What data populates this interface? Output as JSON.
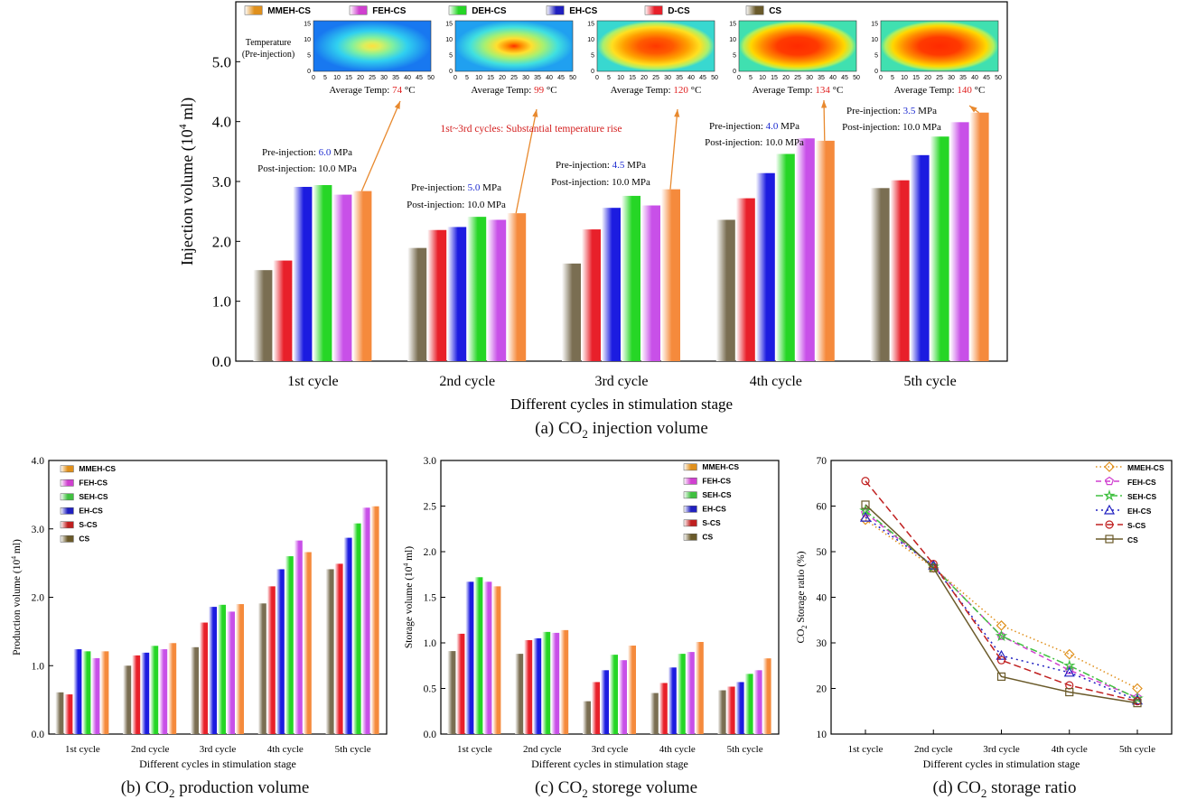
{
  "panels": {
    "a": {
      "caption_pre": "(a) CO",
      "caption_post": " injection volume"
    },
    "b": {
      "caption_pre": "(b) CO",
      "caption_post": " production volume"
    },
    "c": {
      "caption_pre": "(c) CO",
      "caption_post": " storege volume"
    },
    "d": {
      "caption_pre": "(d) CO",
      "caption_post": " storage ratio"
    }
  },
  "heatmaps": {
    "row_label_1": "Temperature",
    "row_label_2": "(Pre-injection)",
    "x_ticks": [
      "0",
      "5",
      "10",
      "15",
      "20",
      "25",
      "30",
      "35",
      "40",
      "45",
      "50"
    ],
    "y_ticks": [
      "0",
      "5",
      "10",
      "15"
    ],
    "avg_prefix": "Average Temp: ",
    "unit": " °C",
    "temps": [
      "74",
      "99",
      "120",
      "134",
      "140"
    ],
    "intensity": [
      0.25,
      0.5,
      0.72,
      0.85,
      0.95
    ]
  },
  "annotations": {
    "pre_prefix": "Pre-injection: ",
    "post_prefix": "Post-injection: ",
    "unit": " MPa",
    "pre_values": [
      "6.0",
      "5.0",
      "4.5",
      "4.0",
      "3.5"
    ],
    "post_values": [
      "10.0",
      "10.0",
      "10.0",
      "10.0",
      "10.0"
    ],
    "rise_note": "1st~3rd cycles: Substantial temperature rise"
  },
  "chart_data": [
    {
      "type": "bar",
      "id": "injection",
      "xlabel": "Different cycles in stimulation stage",
      "ylabel": "Injection volume (10^4 ml)",
      "ylim": [
        0,
        6
      ],
      "yticks": [
        "0.0",
        "1.0",
        "2.0",
        "3.0",
        "4.0",
        "5.0"
      ],
      "categories": [
        "1st cycle",
        "2nd cycle",
        "3rd cycle",
        "4th cycle",
        "5th cycle"
      ],
      "legend_position": "top",
      "legend": [
        "MMEH-CS",
        "FEH-CS",
        "DEH-CS",
        "EH-CS",
        "D-CS",
        "CS"
      ],
      "series": [
        {
          "name": "CS",
          "color": "#7a6e52",
          "values": [
            1.52,
            1.89,
            1.63,
            2.36,
            2.89
          ]
        },
        {
          "name": "D-CS",
          "color": "#e8202a",
          "values": [
            1.68,
            2.19,
            2.2,
            2.72,
            3.02
          ]
        },
        {
          "name": "EH-CS",
          "color": "#1c1ce0",
          "values": [
            2.91,
            2.24,
            2.56,
            3.14,
            3.44
          ]
        },
        {
          "name": "DEH-CS",
          "color": "#26d626",
          "values": [
            2.94,
            2.41,
            2.76,
            3.46,
            3.75
          ]
        },
        {
          "name": "FEH-CS",
          "color": "#c850e8",
          "values": [
            2.78,
            2.36,
            2.6,
            3.72,
            3.99
          ]
        },
        {
          "name": "MMEH-CS",
          "color": "#f58a3c",
          "values": [
            2.84,
            2.47,
            2.87,
            3.68,
            4.15
          ]
        }
      ]
    },
    {
      "type": "bar",
      "id": "production",
      "xlabel": "Different cycles in stimulation stage",
      "ylabel": "Production volume (10^4 ml)",
      "ylim": [
        0,
        4
      ],
      "yticks": [
        "0.0",
        "1.0",
        "2.0",
        "3.0",
        "4.0"
      ],
      "categories": [
        "1st cycle",
        "2nd cycle",
        "3rd cycle",
        "4th cycle",
        "5th cycle"
      ],
      "legend_position": "top-left",
      "legend": [
        "MMEH-CS",
        "FEH-CS",
        "SEH-CS",
        "EH-CS",
        "S-CS",
        "CS"
      ],
      "series": [
        {
          "name": "CS",
          "color": "#7a6e52",
          "values": [
            0.61,
            1.0,
            1.27,
            1.91,
            2.41
          ]
        },
        {
          "name": "S-CS",
          "color": "#e8202a",
          "values": [
            0.58,
            1.15,
            1.63,
            2.16,
            2.49
          ]
        },
        {
          "name": "EH-CS",
          "color": "#1c1ce0",
          "values": [
            1.24,
            1.19,
            1.86,
            2.41,
            2.87
          ]
        },
        {
          "name": "SEH-CS",
          "color": "#26d626",
          "values": [
            1.21,
            1.29,
            1.89,
            2.6,
            3.08
          ]
        },
        {
          "name": "FEH-CS",
          "color": "#c850e8",
          "values": [
            1.11,
            1.24,
            1.79,
            2.83,
            3.31
          ]
        },
        {
          "name": "MMEH-CS",
          "color": "#f58a3c",
          "values": [
            1.21,
            1.33,
            1.9,
            2.66,
            3.33
          ]
        }
      ]
    },
    {
      "type": "bar",
      "id": "storage",
      "xlabel": "Different cycles in stimulation stage",
      "ylabel": "Storage volume (10^4 ml)",
      "ylim": [
        0,
        3
      ],
      "yticks": [
        "0.0",
        "0.5",
        "1.0",
        "1.5",
        "2.0",
        "2.5",
        "3.0"
      ],
      "categories": [
        "1st cycle",
        "2nd cycle",
        "3rd cycle",
        "4th cycle",
        "5th cycle"
      ],
      "legend_position": "top-right",
      "legend": [
        "MMEH-CS",
        "FEH-CS",
        "SEH-CS",
        "EH-CS",
        "S-CS",
        "CS"
      ],
      "series": [
        {
          "name": "CS",
          "color": "#7a6e52",
          "values": [
            0.91,
            0.88,
            0.36,
            0.45,
            0.48
          ]
        },
        {
          "name": "S-CS",
          "color": "#e8202a",
          "values": [
            1.1,
            1.03,
            0.57,
            0.56,
            0.52
          ]
        },
        {
          "name": "EH-CS",
          "color": "#1c1ce0",
          "values": [
            1.67,
            1.05,
            0.7,
            0.73,
            0.57
          ]
        },
        {
          "name": "SEH-CS",
          "color": "#26d626",
          "values": [
            1.72,
            1.12,
            0.87,
            0.88,
            0.66
          ]
        },
        {
          "name": "FEH-CS",
          "color": "#c850e8",
          "values": [
            1.67,
            1.11,
            0.81,
            0.9,
            0.7
          ]
        },
        {
          "name": "MMEH-CS",
          "color": "#f58a3c",
          "values": [
            1.62,
            1.14,
            0.97,
            1.01,
            0.83
          ]
        }
      ]
    },
    {
      "type": "line",
      "id": "ratio",
      "xlabel": "Different cycles in stimulation stage",
      "ylabel": "CO2 Storage ratio (%)",
      "ylim": [
        10,
        70
      ],
      "yticks": [
        "10",
        "20",
        "30",
        "40",
        "50",
        "60",
        "70"
      ],
      "categories": [
        "1st cycle",
        "2nd cycle",
        "3rd cycle",
        "4th cycle",
        "5th cycle"
      ],
      "legend_position": "top-right",
      "legend": [
        "MMEH-CS",
        "FEH-CS",
        "SEH-CS",
        "EH-CS",
        "S-CS",
        "CS"
      ],
      "series": [
        {
          "name": "MMEH-CS",
          "color": "#e0901c",
          "marker": "diamond",
          "dash": "1.5,3",
          "values": [
            57.0,
            46.5,
            33.8,
            27.5,
            20.0
          ]
        },
        {
          "name": "FEH-CS",
          "color": "#d040d0",
          "marker": "pentagon",
          "dash": "6,4",
          "values": [
            58.5,
            46.8,
            31.5,
            24.0,
            18.0
          ]
        },
        {
          "name": "SEH-CS",
          "color": "#40c040",
          "marker": "star",
          "dash": "8,3,2,3",
          "values": [
            59.0,
            46.7,
            31.5,
            25.0,
            17.8
          ]
        },
        {
          "name": "EH-CS",
          "color": "#2020c0",
          "marker": "triangle",
          "dash": "2,4",
          "values": [
            57.5,
            47.0,
            27.2,
            23.5,
            17.4
          ]
        },
        {
          "name": "S-CS",
          "color": "#c02020",
          "marker": "circle",
          "dash": "8,4",
          "values": [
            65.5,
            47.3,
            26.2,
            20.7,
            17.2
          ]
        },
        {
          "name": "CS",
          "color": "#6a5a2a",
          "marker": "square",
          "dash": "",
          "values": [
            60.3,
            46.4,
            22.6,
            19.2,
            16.8
          ]
        }
      ]
    }
  ]
}
